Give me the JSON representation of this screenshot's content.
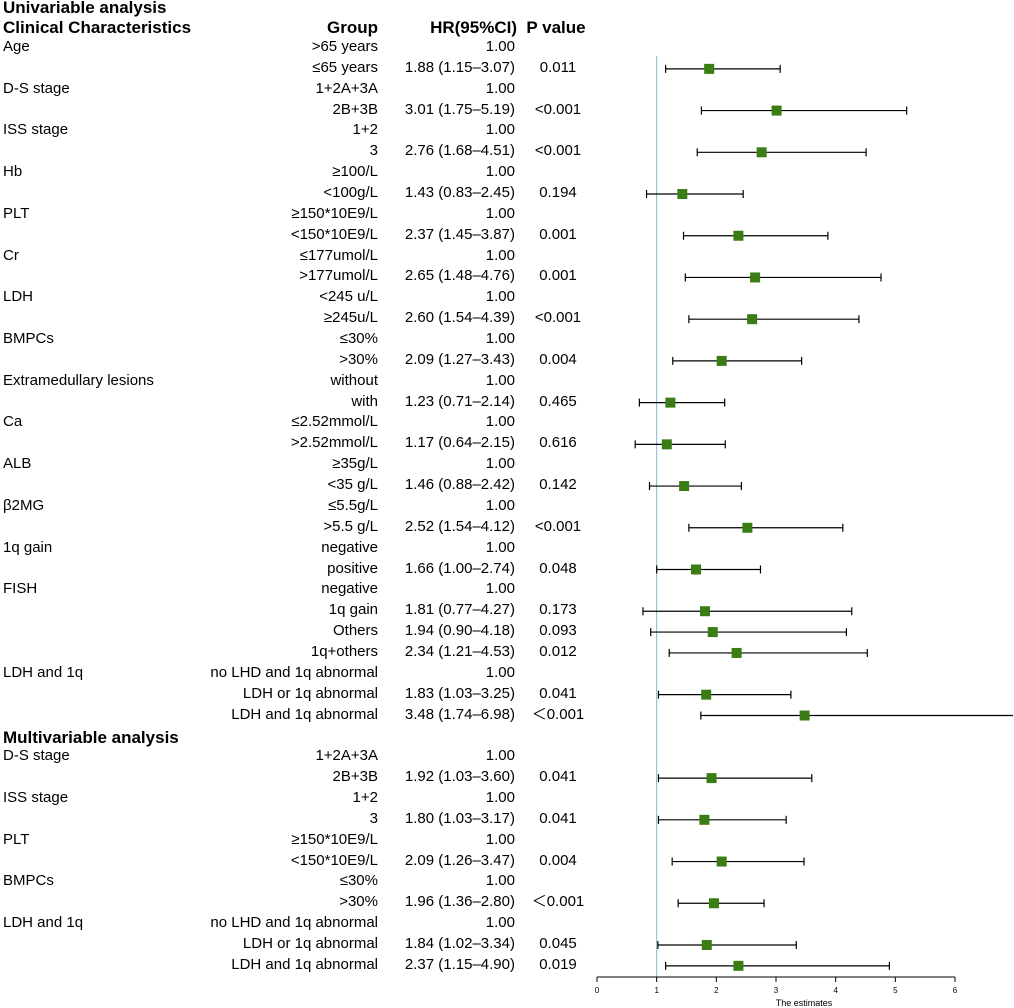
{
  "headers": {
    "univariable": "Univariable  analysis",
    "clinical": "Clinical Characteristics",
    "group": "Group",
    "hr": "HR(95%CI)",
    "p": "P value",
    "multivariable": "Multivariable analysis"
  },
  "rows": [
    {
      "label": "Age",
      "group": ">65 years",
      "hr": "1.00",
      "p": ""
    },
    {
      "label": "",
      "group": "≤65 years",
      "hr": "1.88 (1.15–3.07)",
      "p": "0.011"
    },
    {
      "label": "D-S stage",
      "group": "1+2A+3A",
      "hr": "1.00",
      "p": ""
    },
    {
      "label": "",
      "group": "2B+3B",
      "hr": "3.01 (1.75–5.19)",
      "p": "<0.001"
    },
    {
      "label": "ISS stage",
      "group": "1+2",
      "hr": "1.00",
      "p": ""
    },
    {
      "label": "",
      "group": "3",
      "hr": "2.76 (1.68–4.51)",
      "p": "<0.001"
    },
    {
      "label": "Hb",
      "group": "≥100/L",
      "hr": "1.00",
      "p": ""
    },
    {
      "label": "",
      "group": "<100g/L",
      "hr": "1.43 (0.83–2.45)",
      "p": "0.194"
    },
    {
      "label": "PLT",
      "group": "≥150*10E9/L",
      "hr": "1.00",
      "p": ""
    },
    {
      "label": "",
      "group": "<150*10E9/L",
      "hr": "2.37 (1.45–3.87)",
      "p": "0.001"
    },
    {
      "label": "Cr",
      "group": "≤177umol/L",
      "hr": "1.00",
      "p": ""
    },
    {
      "label": "",
      "group": ">177umol/L",
      "hr": "2.65 (1.48–4.76)",
      "p": "0.001"
    },
    {
      "label": "LDH",
      "group": "<245 u/L",
      "hr": "1.00",
      "p": ""
    },
    {
      "label": "",
      "group": "≥245u/L",
      "hr": "2.60 (1.54–4.39)",
      "p": "<0.001"
    },
    {
      "label": "BMPCs",
      "group": "≤30%",
      "hr": "1.00",
      "p": ""
    },
    {
      "label": "",
      "group": ">30%",
      "hr": "2.09 (1.27–3.43)",
      "p": "0.004"
    },
    {
      "label": "Extramedullary lesions",
      "group": "without",
      "hr": "1.00",
      "p": ""
    },
    {
      "label": "",
      "group": "with",
      "hr": "1.23 (0.71–2.14)",
      "p": "0.465"
    },
    {
      "label": "Ca",
      "group": "≤2.52mmol/L",
      "hr": "1.00",
      "p": ""
    },
    {
      "label": "",
      "group": ">2.52mmol/L",
      "hr": "1.17 (0.64–2.15)",
      "p": "0.616"
    },
    {
      "label": "ALB",
      "group": "≥35g/L",
      "hr": "1.00",
      "p": ""
    },
    {
      "label": "",
      "group": "<35 g/L",
      "hr": "1.46 (0.88–2.42)",
      "p": "0.142"
    },
    {
      "label": "β2MG",
      "group": "≤5.5g/L",
      "hr": "1.00",
      "p": ""
    },
    {
      "label": "",
      "group": ">5.5 g/L",
      "hr": "2.52 (1.54–4.12)",
      "p": "<0.001"
    },
    {
      "label": "1q gain",
      "group": "negative",
      "hr": "1.00",
      "p": ""
    },
    {
      "label": "",
      "group": "positive",
      "hr": "1.66 (1.00–2.74)",
      "p": "0.048"
    },
    {
      "label": "FISH",
      "group": "negative",
      "hr": "1.00",
      "p": ""
    },
    {
      "label": "",
      "group": "1q gain",
      "hr": "1.81 (0.77–4.27)",
      "p": "0.173"
    },
    {
      "label": "",
      "group": "Others",
      "hr": "1.94 (0.90–4.18)",
      "p": "0.093"
    },
    {
      "label": "",
      "group": "1q+others",
      "hr": "2.34 (1.21–4.53)",
      "p": "0.012"
    },
    {
      "label": "LDH and 1q",
      "group": "no LHD and 1q abnormal",
      "hr": "1.00",
      "p": ""
    },
    {
      "label": "",
      "group": "LDH or 1q abnormal",
      "hr": "1.83 (1.03–3.25)",
      "p": "0.041"
    },
    {
      "label": "",
      "group": "LDH and 1q abnormal",
      "hr": "3.48 (1.74–6.98)",
      "p": "＜0.001"
    },
    {
      "label": "",
      "group": "",
      "hr": "",
      "p": ""
    },
    {
      "label": "D-S stage",
      "group": "1+2A+3A",
      "hr": "1.00",
      "p": ""
    },
    {
      "label": "",
      "group": "2B+3B",
      "hr": "1.92 (1.03–3.60)",
      "p": "0.041"
    },
    {
      "label": "ISS stage",
      "group": "1+2",
      "hr": "1.00",
      "p": ""
    },
    {
      "label": "",
      "group": "3",
      "hr": "1.80 (1.03–3.17)",
      "p": "0.041"
    },
    {
      "label": "PLT",
      "group": "≥150*10E9/L",
      "hr": "1.00",
      "p": ""
    },
    {
      "label": "",
      "group": "<150*10E9/L",
      "hr": "2.09 (1.26–3.47)",
      "p": "0.004"
    },
    {
      "label": "BMPCs",
      "group": "≤30%",
      "hr": "1.00",
      "p": ""
    },
    {
      "label": "",
      "group": ">30%",
      "hr": "1.96 (1.36–2.80)",
      "p": "＜0.001"
    },
    {
      "label": "LDH and 1q",
      "group": "no LHD and 1q abnormal",
      "hr": "1.00",
      "p": ""
    },
    {
      "label": "",
      "group": "LDH or 1q abnormal",
      "hr": "1.84 (1.02–3.34)",
      "p": "0.045"
    },
    {
      "label": "",
      "group": "LDH and 1q abnormal",
      "hr": "2.37 (1.15–4.90)",
      "p": "0.019"
    }
  ],
  "chart_data": {
    "type": "forest",
    "xlabel": "The estimates",
    "xlim": [
      0,
      6
    ],
    "ticks": [
      0,
      1,
      2,
      3,
      4,
      5,
      6
    ],
    "reference_line": 1,
    "colors": {
      "marker": "#3a7d14",
      "reference": "#88b8c8",
      "axis": "#000000"
    },
    "points": [
      {
        "row": 1,
        "est": 1.88,
        "lo": 1.15,
        "hi": 3.07
      },
      {
        "row": 3,
        "est": 3.01,
        "lo": 1.75,
        "hi": 5.19
      },
      {
        "row": 5,
        "est": 2.76,
        "lo": 1.68,
        "hi": 4.51
      },
      {
        "row": 7,
        "est": 1.43,
        "lo": 0.83,
        "hi": 2.45
      },
      {
        "row": 9,
        "est": 2.37,
        "lo": 1.45,
        "hi": 3.87
      },
      {
        "row": 11,
        "est": 2.65,
        "lo": 1.48,
        "hi": 4.76
      },
      {
        "row": 13,
        "est": 2.6,
        "lo": 1.54,
        "hi": 4.39
      },
      {
        "row": 15,
        "est": 2.09,
        "lo": 1.27,
        "hi": 3.43
      },
      {
        "row": 17,
        "est": 1.23,
        "lo": 0.71,
        "hi": 2.14
      },
      {
        "row": 19,
        "est": 1.17,
        "lo": 0.64,
        "hi": 2.15
      },
      {
        "row": 21,
        "est": 1.46,
        "lo": 0.88,
        "hi": 2.42
      },
      {
        "row": 23,
        "est": 2.52,
        "lo": 1.54,
        "hi": 4.12
      },
      {
        "row": 25,
        "est": 1.66,
        "lo": 1.0,
        "hi": 2.74
      },
      {
        "row": 27,
        "est": 1.81,
        "lo": 0.77,
        "hi": 4.27
      },
      {
        "row": 28,
        "est": 1.94,
        "lo": 0.9,
        "hi": 4.18
      },
      {
        "row": 29,
        "est": 2.34,
        "lo": 1.21,
        "hi": 4.53
      },
      {
        "row": 31,
        "est": 1.83,
        "lo": 1.03,
        "hi": 3.25
      },
      {
        "row": 32,
        "est": 3.48,
        "lo": 1.74,
        "hi": 6.98
      },
      {
        "row": 35,
        "est": 1.92,
        "lo": 1.03,
        "hi": 3.6
      },
      {
        "row": 37,
        "est": 1.8,
        "lo": 1.03,
        "hi": 3.17
      },
      {
        "row": 39,
        "est": 2.09,
        "lo": 1.26,
        "hi": 3.47
      },
      {
        "row": 41,
        "est": 1.96,
        "lo": 1.36,
        "hi": 2.8
      },
      {
        "row": 43,
        "est": 1.84,
        "lo": 1.02,
        "hi": 3.34
      },
      {
        "row": 44,
        "est": 2.37,
        "lo": 1.15,
        "hi": 4.9
      }
    ]
  }
}
